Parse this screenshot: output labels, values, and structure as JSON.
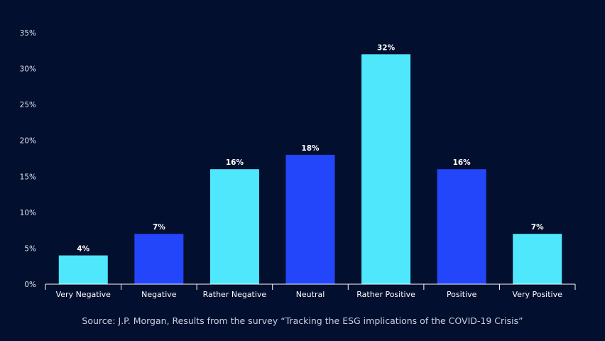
{
  "chart_data": {
    "type": "bar",
    "categories": [
      "Very Negative",
      "Negative",
      "Rather Negative",
      "Neutral",
      "Rather Positive",
      "Positive",
      "Very Positive"
    ],
    "values": [
      4,
      7,
      16,
      18,
      32,
      16,
      7
    ],
    "data_labels": [
      "4%",
      "7%",
      "16%",
      "18%",
      "32%",
      "16%",
      "7%"
    ],
    "ylim": [
      0,
      35
    ],
    "yticks": [
      0,
      5,
      10,
      15,
      20,
      25,
      30,
      35
    ],
    "ytick_labels": [
      "0%",
      "5%",
      "10%",
      "15%",
      "20%",
      "25%",
      "30%",
      "35%"
    ],
    "grid": false,
    "bar_colors": [
      "#4ee7fb",
      "#2346fb",
      "#4ee7fb",
      "#2346fb",
      "#4ee7fb",
      "#2346fb",
      "#4ee7fb"
    ]
  },
  "colors": {
    "background": "#030f2e",
    "axis": "#ffffff"
  },
  "source": "Source: J.P. Morgan, Results from the survey “Tracking the ESG implications of the COVID-19 Crisis”"
}
